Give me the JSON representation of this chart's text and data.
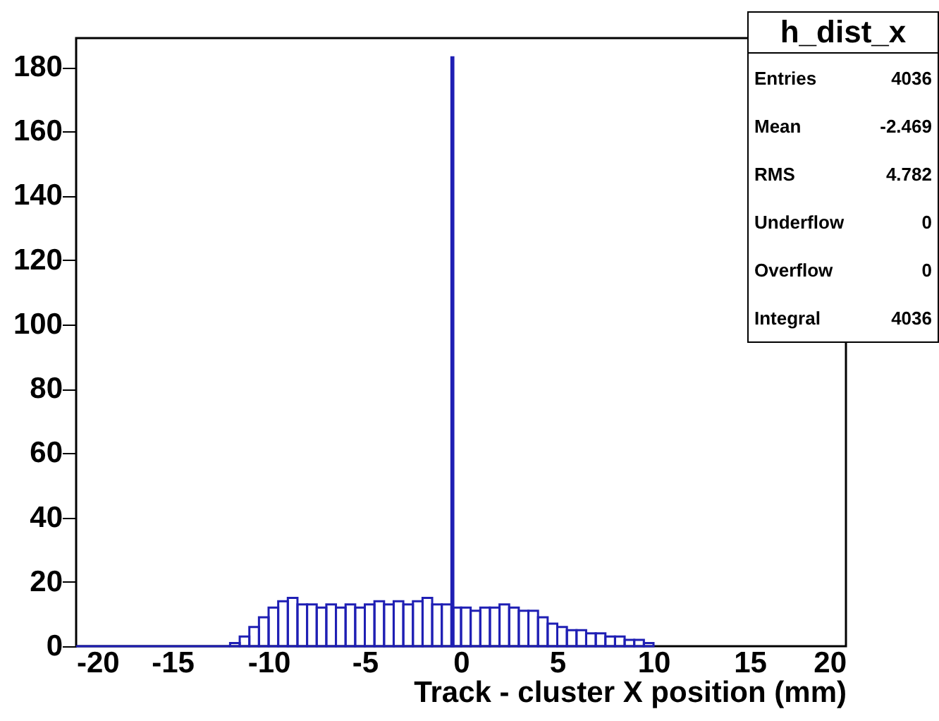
{
  "chart_data": {
    "type": "histogram",
    "xlabel": "Track - cluster X position (mm)",
    "bins": [
      -20,
      -12,
      -11.5,
      -11,
      -10.5,
      -10,
      -9.5,
      -9,
      -8.5,
      -8,
      -7.5,
      -7,
      -6.5,
      -6,
      -5.5,
      -5,
      -4.5,
      -4,
      -3.5,
      -3,
      -2.5,
      -2,
      -1.5,
      -1,
      -0.5,
      -0.4,
      0,
      0.5,
      1,
      1.5,
      2,
      2.5,
      3,
      3.5,
      4,
      4.5,
      5,
      5.5,
      6,
      6.5,
      7,
      7.5,
      8,
      8.5,
      9,
      9.5,
      10
    ],
    "values": [
      0,
      1,
      3,
      6,
      9,
      12,
      14,
      15,
      13,
      13,
      12,
      13,
      12,
      13,
      12,
      13,
      14,
      13,
      14,
      13,
      14,
      15,
      13,
      13,
      183,
      12,
      12,
      11,
      12,
      12,
      13,
      12,
      11,
      11,
      9,
      7,
      6,
      5,
      5,
      4,
      4,
      3,
      3,
      2,
      2,
      1
    ],
    "color": "#1f1fb4",
    "xlim": [
      -20,
      20
    ],
    "xticks": [
      -20,
      -15,
      -10,
      -5,
      0,
      5,
      10,
      15,
      20
    ],
    "ylim": [
      0,
      189
    ],
    "yticks": [
      0,
      20,
      40,
      60,
      80,
      100,
      120,
      140,
      160,
      180
    ],
    "grid": false,
    "annotations": [
      "h_dist_x",
      "Entries 4036",
      "Mean -2.469",
      "RMS 4.782",
      "Underflow 0",
      "Overflow 0",
      "Integral 4036"
    ]
  }
}
